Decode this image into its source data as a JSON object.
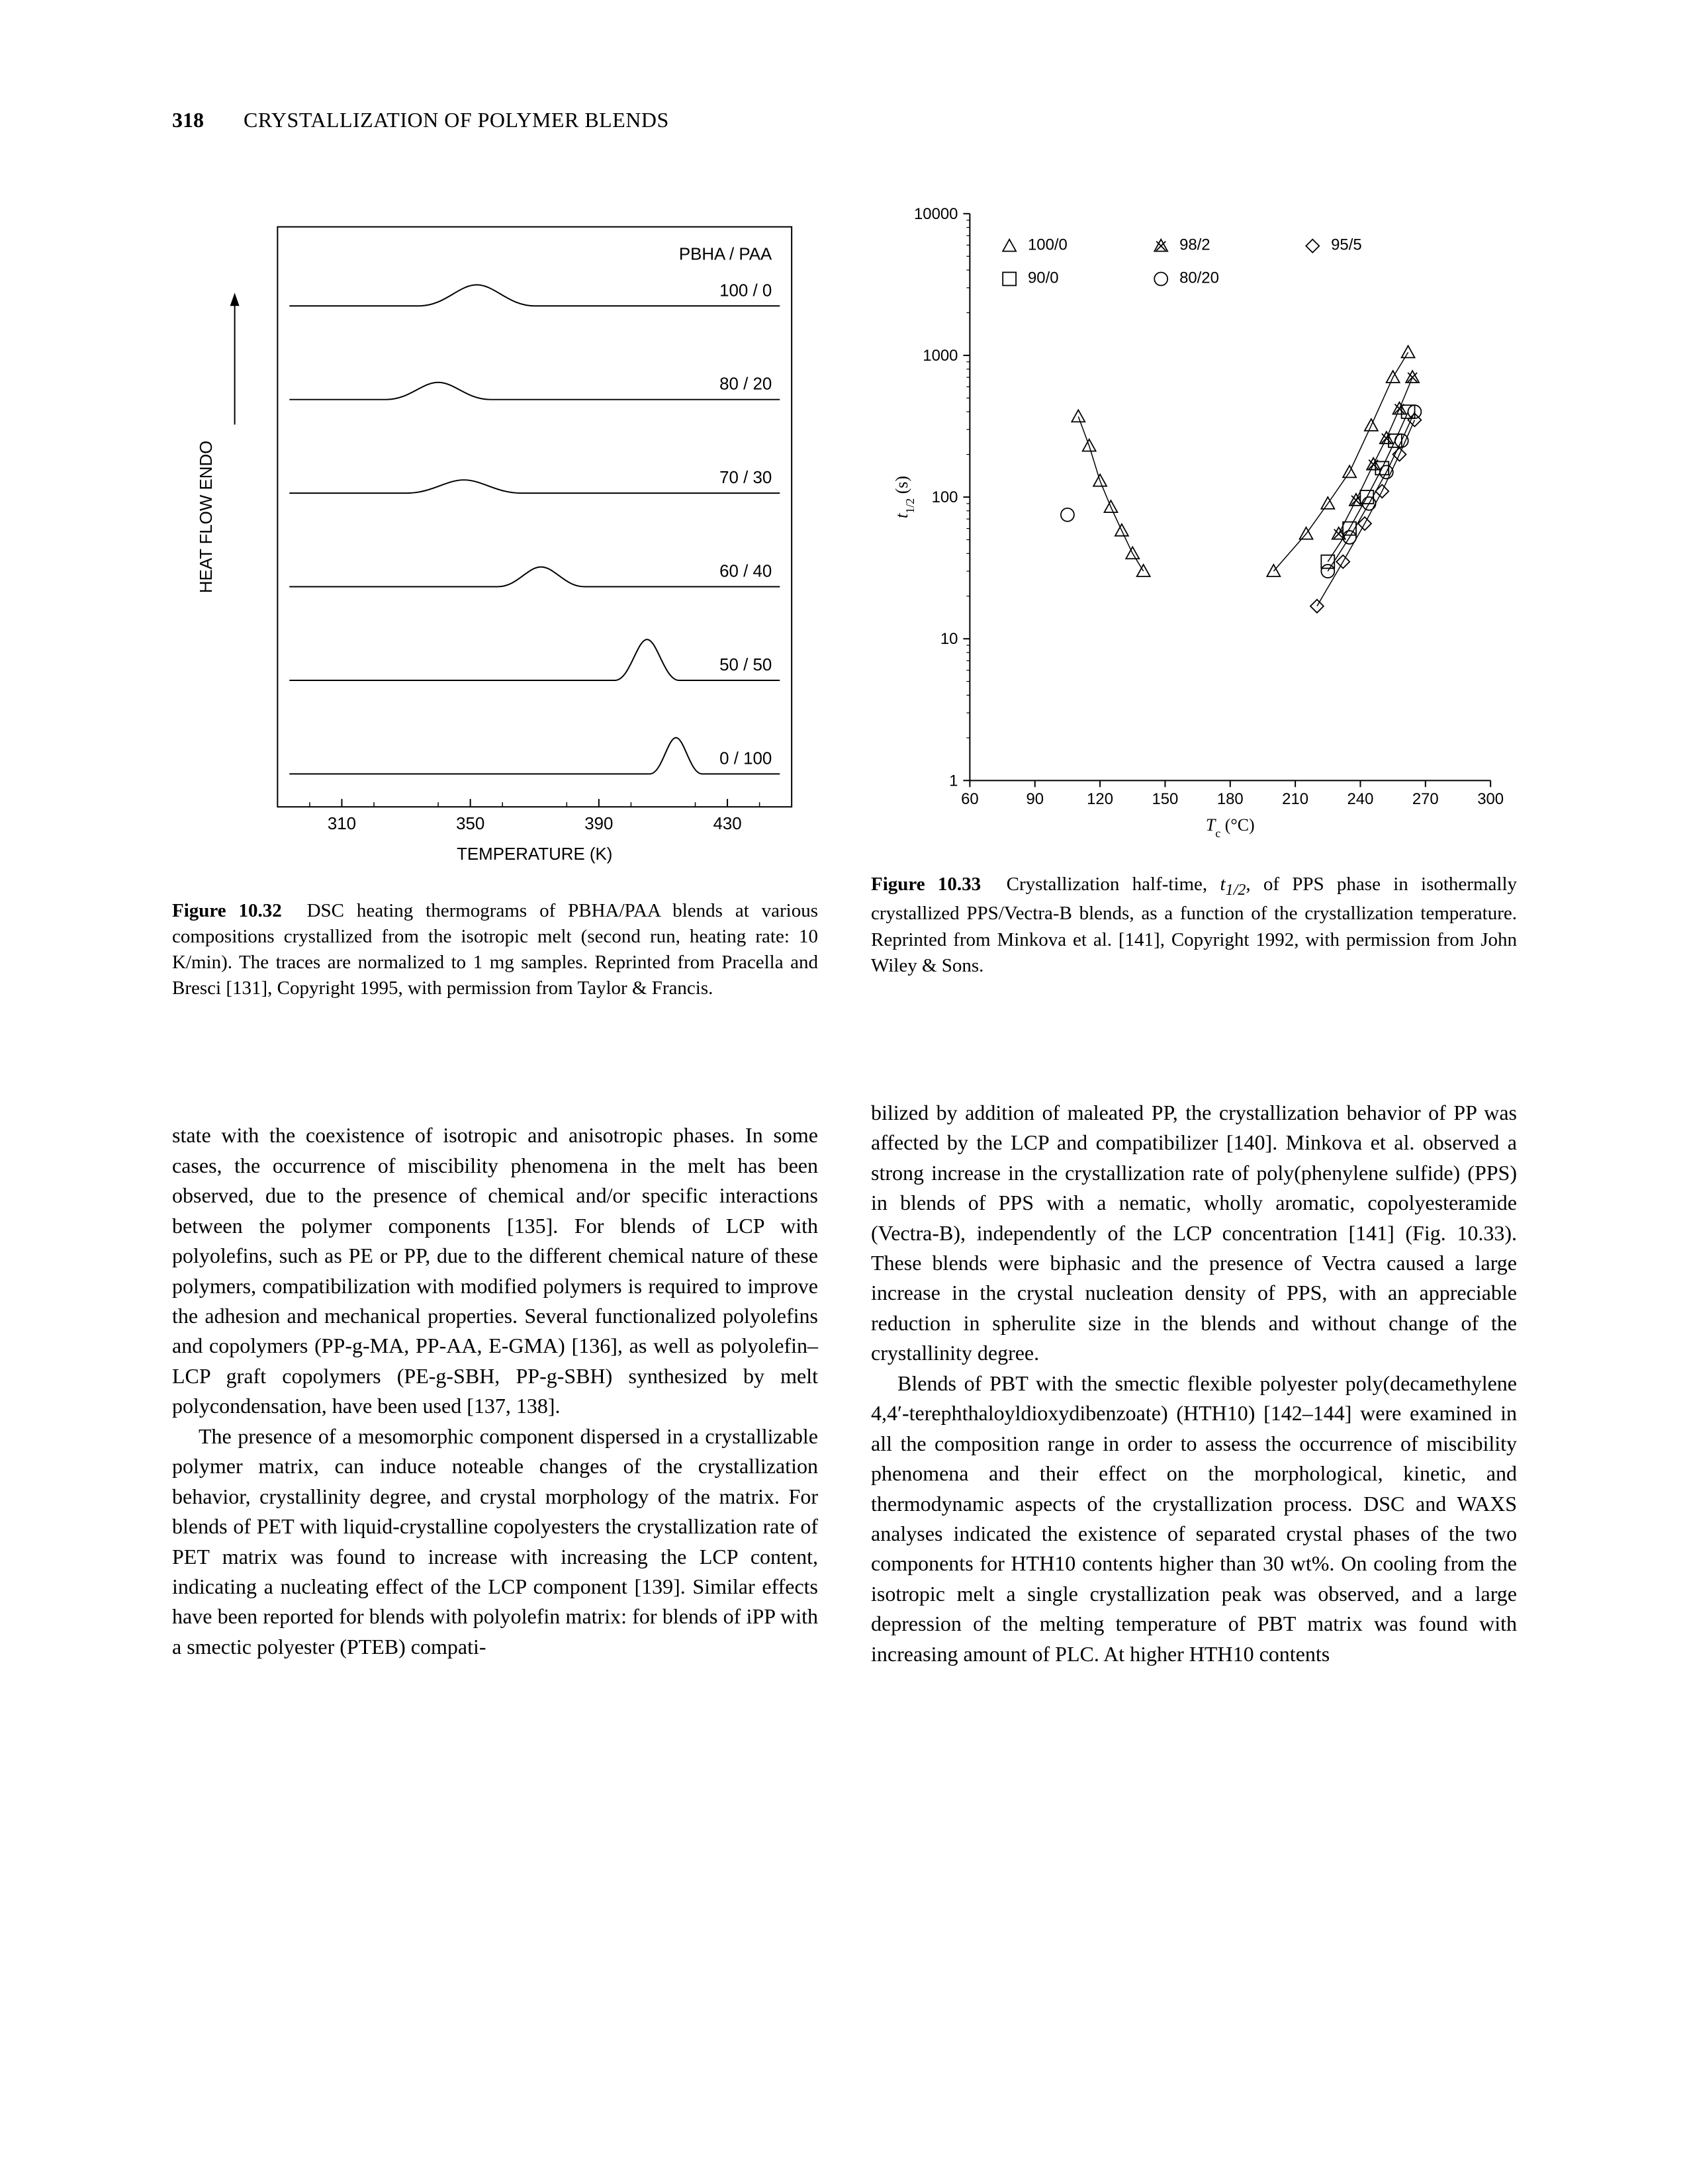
{
  "page": {
    "number": "318",
    "running_head": "CRYSTALLIZATION OF POLYMER BLENDS"
  },
  "fig32": {
    "title": "PBHA / PAA",
    "y_axis_label": "HEAT FLOW      ENDO",
    "x_axis_label": "TEMPERATURE (K)",
    "x_min": 290,
    "x_max": 450,
    "x_ticks": [
      310,
      350,
      390,
      430
    ],
    "x_tick_labels": [
      "310",
      "350",
      "390",
      "430"
    ],
    "axis_color": "#000000",
    "background_color": "#ffffff",
    "line_color": "#000000",
    "line_width": 2,
    "tick_fontsize": 26,
    "label_fontsize": 26,
    "series_label_fontsize": 26,
    "traces": [
      {
        "label": "100 / 0",
        "baseline": 520,
        "peak_x": 352,
        "peak_h": 32,
        "peak_w": 40
      },
      {
        "label": "80 / 20",
        "baseline": 590,
        "peak_x": 340,
        "peak_h": 26,
        "peak_w": 36
      },
      {
        "label": "70 / 30",
        "baseline": 660,
        "peak_x": 348,
        "peak_h": 20,
        "peak_w": 40
      },
      {
        "label": "60 / 40",
        "baseline": 730,
        "peak_x": 372,
        "peak_h": 30,
        "peak_w": 30
      },
      {
        "label": "50 / 50",
        "baseline": 800,
        "peak_x": 405,
        "peak_h": 62,
        "peak_w": 22
      },
      {
        "label": "0 / 100",
        "baseline": 870,
        "peak_x": 414,
        "peak_h": 55,
        "peak_w": 18
      }
    ],
    "caption_lead": "Figure 10.32",
    "caption": "DSC heating thermograms of PBHA/PAA blends at various compositions crystallized from the isotropic melt (second run, heating rate: 10 K/min). The traces are normalized to 1 mg samples. Reprinted from Pracella and Bresci [131], Copyright 1995, with permission from Taylor & Francis."
  },
  "fig33": {
    "x_axis_label": "Tc (°C)",
    "x_axis_label_prefix": "T",
    "x_axis_label_suffix": " (°C)",
    "x_axis_sub": "c",
    "y_axis_label": "t1/2 (s)",
    "y_axis_label_prefix": "t",
    "y_axis_label_sub": "1/2",
    "y_axis_label_suffix": " (s)",
    "x_min": 60,
    "x_max": 300,
    "x_ticks": [
      60,
      90,
      120,
      150,
      180,
      210,
      240,
      270,
      300
    ],
    "x_tick_labels": [
      "60",
      "90",
      "120",
      "150",
      "180",
      "210",
      "240",
      "270",
      "300"
    ],
    "y_min": 1,
    "y_max": 10000,
    "y_log": true,
    "y_ticks": [
      1,
      10,
      100,
      1000,
      10000
    ],
    "y_tick_labels": [
      "1",
      "10",
      "100",
      "1000",
      "10000"
    ],
    "axis_color": "#000000",
    "background_color": "#ffffff",
    "marker_stroke": "#000000",
    "marker_fill": "none",
    "marker_size": 10,
    "line_color": "#000000",
    "line_width": 1.5,
    "tick_fontsize": 24,
    "label_fontsize": 26,
    "legend_fontsize": 24,
    "legend": [
      {
        "marker": "triangle-up",
        "label": "100/0"
      },
      {
        "marker": "triangle-x",
        "label": "98/2"
      },
      {
        "marker": "diamond",
        "label": "95/5"
      },
      {
        "marker": "square",
        "label": "90/0"
      },
      {
        "marker": "circle",
        "label": "80/20"
      }
    ],
    "series": [
      {
        "marker": "triangle-up",
        "points": [
          [
            110,
            370
          ],
          [
            115,
            230
          ],
          [
            120,
            130
          ],
          [
            125,
            85
          ],
          [
            130,
            58
          ],
          [
            135,
            40
          ],
          [
            140,
            30
          ]
        ]
      },
      {
        "marker": "circle",
        "points": [
          [
            105,
            75
          ]
        ]
      },
      {
        "marker": "triangle-up",
        "points": [
          [
            200,
            30
          ],
          [
            215,
            55
          ],
          [
            225,
            90
          ],
          [
            235,
            150
          ],
          [
            245,
            320
          ],
          [
            255,
            700
          ],
          [
            262,
            1050
          ]
        ]
      },
      {
        "marker": "triangle-x",
        "points": [
          [
            230,
            55
          ],
          [
            238,
            95
          ],
          [
            246,
            170
          ],
          [
            252,
            260
          ],
          [
            258,
            420
          ],
          [
            264,
            700
          ]
        ]
      },
      {
        "marker": "square",
        "points": [
          [
            225,
            35
          ],
          [
            235,
            60
          ],
          [
            243,
            100
          ],
          [
            250,
            160
          ],
          [
            256,
            250
          ],
          [
            262,
            400
          ]
        ]
      },
      {
        "marker": "diamond",
        "points": [
          [
            220,
            17
          ],
          [
            232,
            35
          ],
          [
            242,
            65
          ],
          [
            250,
            110
          ],
          [
            258,
            200
          ],
          [
            265,
            350
          ]
        ]
      },
      {
        "marker": "circle",
        "points": [
          [
            225,
            30
          ],
          [
            235,
            52
          ],
          [
            244,
            90
          ],
          [
            252,
            150
          ],
          [
            259,
            250
          ],
          [
            265,
            400
          ]
        ]
      }
    ],
    "caption_lead": "Figure 10.33",
    "caption_seg1": "Crystallization half-time, ",
    "caption_seg2": ", of PPS phase in isothermally crystallized PPS/Vectra-B blends, as a function of the crystallization temperature. Reprinted from Minkova et al. [141], Copyright 1992, with permission from John Wiley & Sons."
  },
  "text": {
    "left_p1": "state with the coexistence of isotropic and anisotropic phases. In some cases, the occurrence of miscibility phenomena in the melt has been observed, due to the presence of chemical and/or specific interactions between the polymer components [135]. For blends of LCP with polyolefins, such as PE or PP, due to the different chemical nature of these polymers, compatibilization with modified polymers is required to improve the adhesion and mechanical properties. Several functionalized polyolefins and copolymers (PP-g-MA, PP-AA, E-GMA) [136], as well as polyolefin–LCP graft copolymers (PE-g-SBH, PP-g-SBH) synthesized by melt polycondensation, have been used [137, 138].",
    "left_p2": "The presence of a mesomorphic component dispersed in a crystallizable polymer matrix, can induce noteable changes of the crystallization behavior, crystallinity degree, and crystal morphology of the matrix. For blends of PET with liquid-crystalline copolyesters the crystallization rate of PET matrix was found to increase with increasing the LCP content, indicating a nucleating effect of the LCP component [139]. Similar effects have been reported for blends with polyolefin matrix: for blends of iPP with a smectic polyester (PTEB) compati-",
    "right_p1": "bilized by addition of maleated PP, the crystallization behavior of PP was affected by the LCP and compatibilizer [140]. Minkova et al. observed a strong increase in the crystallization rate of poly(phenylene sulfide) (PPS) in blends of PPS with a nematic, wholly aromatic, copolyesteramide (Vectra-B), independently of the LCP concentration [141] (Fig. 10.33). These blends were biphasic and the presence of Vectra caused a large increase in the crystal nucleation density of PPS, with an appreciable reduction in spherulite size in the blends and without change of the crystallinity degree.",
    "right_p2": "Blends of PBT with the smectic flexible polyester poly(decamethylene 4,4′-terephthaloyldioxydibenzoate) (HTH10) [142–144] were examined in all the composition range in order to assess the occurrence of miscibility phenomena and their effect on the morphological, kinetic, and thermodynamic aspects of the crystallization process. DSC and WAXS analyses indicated the existence of separated crystal phases of the two components for HTH10 contents higher than 30 wt%. On cooling from the isotropic melt a single crystallization peak was observed, and a large depression of the melting temperature of PBT matrix was found with increasing amount of PLC. At higher HTH10 contents"
  }
}
